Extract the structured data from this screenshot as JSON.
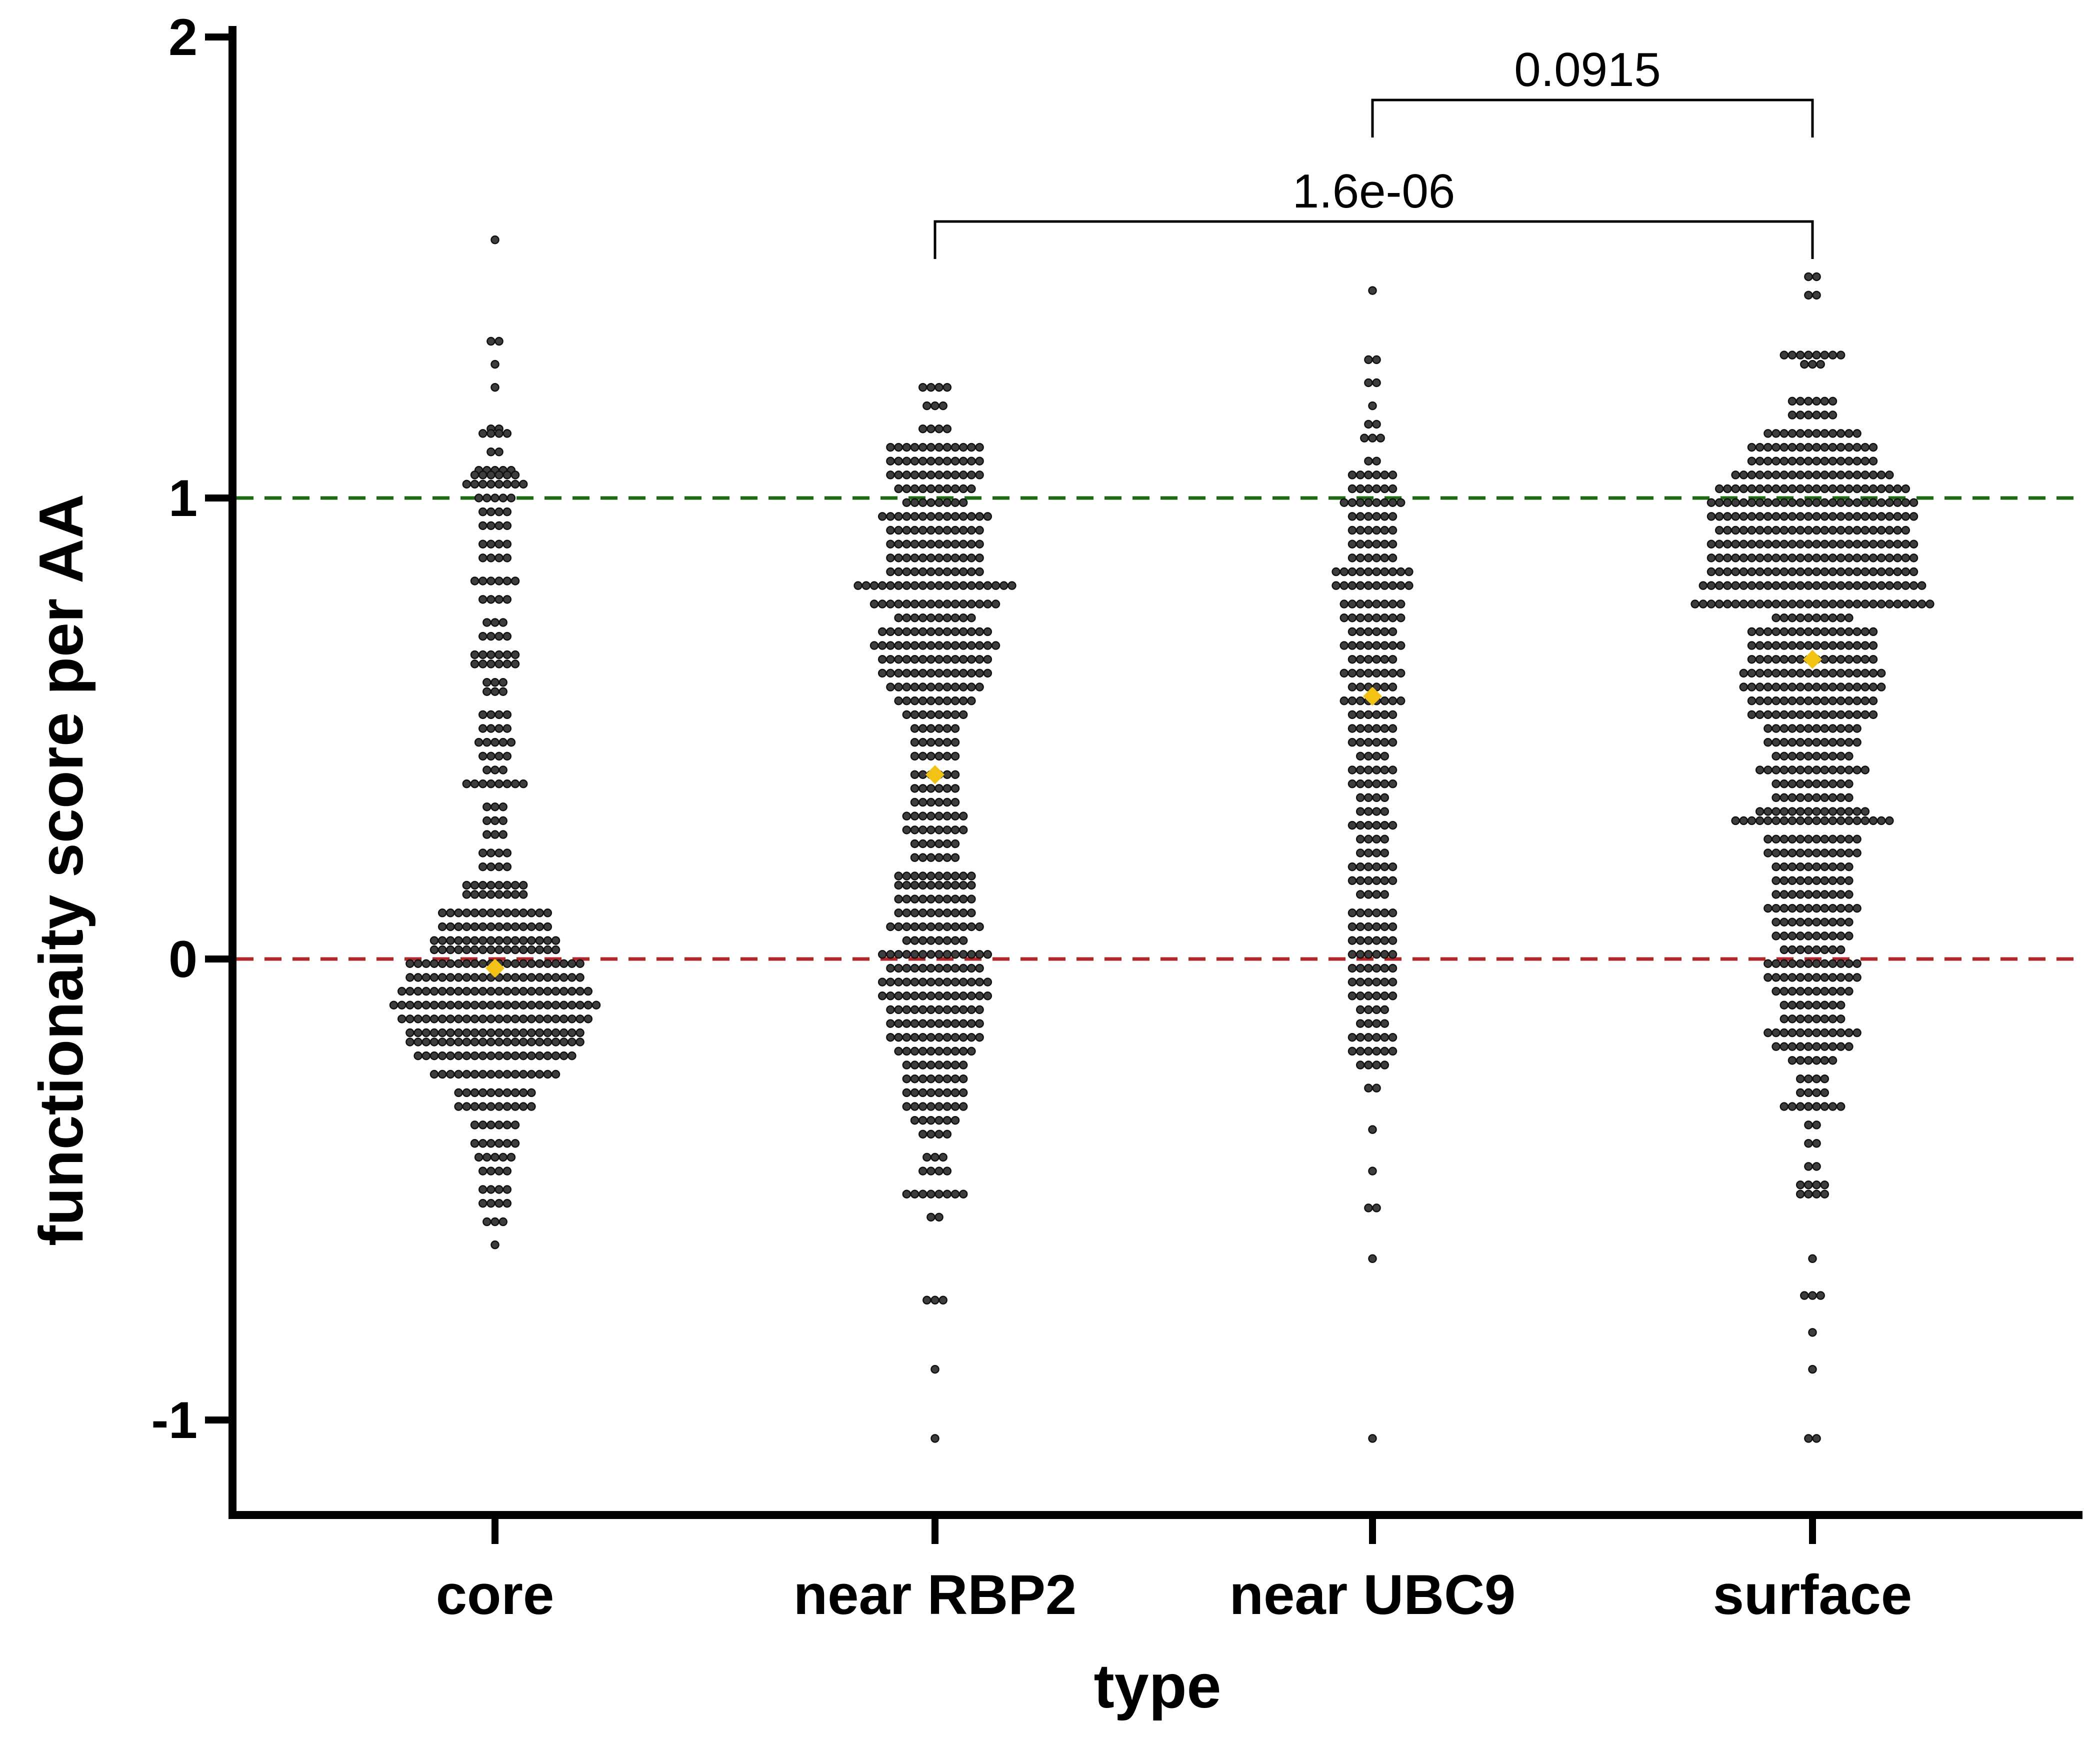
{
  "chart_data": {
    "type": "scatter",
    "subtype": "beeswarm",
    "xlabel": "type",
    "ylabel": "functionaity score per AA",
    "categories": [
      "core",
      "near RBP2",
      "near UBC9",
      "surface"
    ],
    "ylim": [
      -1.2,
      2.0
    ],
    "yticks": [
      2,
      1,
      0,
      -1
    ],
    "ytick_labels": [
      "2",
      "1",
      "0",
      "-1"
    ],
    "reference_lines": [
      {
        "y": 1,
        "color": "#1f6a14",
        "style": "dashed"
      },
      {
        "y": 0,
        "color": "#b3262a",
        "style": "dashed"
      }
    ],
    "point_color": "#3d3d3d",
    "mean_color": "#f2c314",
    "dot_step": 0.0171,
    "group_bins": [
      {
        "name": "core",
        "mean": -0.02,
        "bins": [
          [
            1.56,
            1
          ],
          [
            1.34,
            2
          ],
          [
            1.29,
            1
          ],
          [
            1.24,
            1
          ],
          [
            1.15,
            2
          ],
          [
            1.14,
            4
          ],
          [
            1.1,
            2
          ],
          [
            1.06,
            5
          ],
          [
            1.05,
            6
          ],
          [
            1.03,
            8
          ],
          [
            1.0,
            5
          ],
          [
            0.97,
            4
          ],
          [
            0.94,
            4
          ],
          [
            0.9,
            4
          ],
          [
            0.87,
            4
          ],
          [
            0.82,
            6
          ],
          [
            0.78,
            4
          ],
          [
            0.73,
            3
          ],
          [
            0.7,
            4
          ],
          [
            0.66,
            6
          ],
          [
            0.64,
            6
          ],
          [
            0.6,
            3
          ],
          [
            0.58,
            3
          ],
          [
            0.53,
            4
          ],
          [
            0.5,
            4
          ],
          [
            0.47,
            5
          ],
          [
            0.44,
            4
          ],
          [
            0.41,
            3
          ],
          [
            0.38,
            8
          ],
          [
            0.33,
            3
          ],
          [
            0.3,
            3
          ],
          [
            0.27,
            3
          ],
          [
            0.23,
            4
          ],
          [
            0.2,
            4
          ],
          [
            0.16,
            8
          ],
          [
            0.14,
            8
          ],
          [
            0.1,
            14
          ],
          [
            0.07,
            14
          ],
          [
            0.04,
            16
          ],
          [
            0.02,
            16
          ],
          [
            -0.01,
            22
          ],
          [
            -0.04,
            22
          ],
          [
            -0.07,
            24
          ],
          [
            -0.1,
            26
          ],
          [
            -0.13,
            24
          ],
          [
            -0.16,
            22
          ],
          [
            -0.18,
            22
          ],
          [
            -0.21,
            20
          ],
          [
            -0.25,
            16
          ],
          [
            -0.29,
            10
          ],
          [
            -0.32,
            10
          ],
          [
            -0.36,
            6
          ],
          [
            -0.4,
            6
          ],
          [
            -0.43,
            5
          ],
          [
            -0.46,
            4
          ],
          [
            -0.5,
            4
          ],
          [
            -0.53,
            4
          ],
          [
            -0.57,
            3
          ],
          [
            -0.62,
            1
          ]
        ]
      },
      {
        "name": "near RBP2",
        "mean": 0.4,
        "bins": [
          [
            1.24,
            4
          ],
          [
            1.2,
            3
          ],
          [
            1.15,
            4
          ],
          [
            1.11,
            12
          ],
          [
            1.08,
            12
          ],
          [
            1.05,
            12
          ],
          [
            1.02,
            10
          ],
          [
            0.99,
            8
          ],
          [
            0.96,
            14
          ],
          [
            0.93,
            12
          ],
          [
            0.9,
            12
          ],
          [
            0.87,
            12
          ],
          [
            0.84,
            12
          ],
          [
            0.81,
            20
          ],
          [
            0.77,
            16
          ],
          [
            0.74,
            10
          ],
          [
            0.71,
            14
          ],
          [
            0.68,
            16
          ],
          [
            0.65,
            14
          ],
          [
            0.62,
            14
          ],
          [
            0.59,
            12
          ],
          [
            0.56,
            10
          ],
          [
            0.53,
            8
          ],
          [
            0.5,
            6
          ],
          [
            0.47,
            6
          ],
          [
            0.44,
            6
          ],
          [
            0.4,
            6
          ],
          [
            0.37,
            6
          ],
          [
            0.34,
            6
          ],
          [
            0.31,
            8
          ],
          [
            0.28,
            8
          ],
          [
            0.25,
            6
          ],
          [
            0.22,
            6
          ],
          [
            0.18,
            10
          ],
          [
            0.16,
            10
          ],
          [
            0.13,
            10
          ],
          [
            0.1,
            10
          ],
          [
            0.07,
            12
          ],
          [
            0.04,
            8
          ],
          [
            0.01,
            14
          ],
          [
            -0.02,
            12
          ],
          [
            -0.05,
            14
          ],
          [
            -0.08,
            14
          ],
          [
            -0.11,
            12
          ],
          [
            -0.14,
            12
          ],
          [
            -0.17,
            12
          ],
          [
            -0.2,
            10
          ],
          [
            -0.23,
            8
          ],
          [
            -0.26,
            8
          ],
          [
            -0.29,
            8
          ],
          [
            -0.32,
            8
          ],
          [
            -0.35,
            6
          ],
          [
            -0.38,
            4
          ],
          [
            -0.43,
            3
          ],
          [
            -0.46,
            4
          ],
          [
            -0.51,
            8
          ],
          [
            -0.56,
            2
          ],
          [
            -0.74,
            3
          ],
          [
            -0.89,
            1
          ],
          [
            -1.04,
            1
          ]
        ]
      },
      {
        "name": "near UBC9",
        "mean": 0.57,
        "bins": [
          [
            1.45,
            1
          ],
          [
            1.3,
            2
          ],
          [
            1.25,
            2
          ],
          [
            1.2,
            1
          ],
          [
            1.16,
            2
          ],
          [
            1.13,
            3
          ],
          [
            1.08,
            2
          ],
          [
            1.05,
            6
          ],
          [
            1.02,
            6
          ],
          [
            0.99,
            8
          ],
          [
            0.96,
            6
          ],
          [
            0.93,
            6
          ],
          [
            0.9,
            6
          ],
          [
            0.87,
            6
          ],
          [
            0.84,
            10
          ],
          [
            0.81,
            10
          ],
          [
            0.77,
            8
          ],
          [
            0.74,
            8
          ],
          [
            0.71,
            6
          ],
          [
            0.68,
            8
          ],
          [
            0.65,
            6
          ],
          [
            0.62,
            8
          ],
          [
            0.59,
            6
          ],
          [
            0.56,
            8
          ],
          [
            0.53,
            6
          ],
          [
            0.5,
            6
          ],
          [
            0.47,
            6
          ],
          [
            0.44,
            4
          ],
          [
            0.41,
            6
          ],
          [
            0.38,
            6
          ],
          [
            0.35,
            4
          ],
          [
            0.32,
            4
          ],
          [
            0.29,
            6
          ],
          [
            0.26,
            4
          ],
          [
            0.23,
            4
          ],
          [
            0.2,
            6
          ],
          [
            0.17,
            6
          ],
          [
            0.14,
            4
          ],
          [
            0.1,
            6
          ],
          [
            0.07,
            6
          ],
          [
            0.04,
            6
          ],
          [
            0.01,
            6
          ],
          [
            -0.02,
            6
          ],
          [
            -0.05,
            6
          ],
          [
            -0.08,
            6
          ],
          [
            -0.11,
            4
          ],
          [
            -0.14,
            4
          ],
          [
            -0.17,
            6
          ],
          [
            -0.2,
            6
          ],
          [
            -0.23,
            4
          ],
          [
            -0.28,
            2
          ],
          [
            -0.37,
            1
          ],
          [
            -0.46,
            1
          ],
          [
            -0.54,
            2
          ],
          [
            -0.65,
            1
          ],
          [
            -1.04,
            1
          ]
        ]
      },
      {
        "name": "surface",
        "mean": 0.65,
        "bins": [
          [
            1.48,
            2
          ],
          [
            1.44,
            2
          ],
          [
            1.31,
            8
          ],
          [
            1.29,
            3
          ],
          [
            1.21,
            6
          ],
          [
            1.18,
            6
          ],
          [
            1.14,
            12
          ],
          [
            1.11,
            16
          ],
          [
            1.08,
            16
          ],
          [
            1.05,
            20
          ],
          [
            1.02,
            24
          ],
          [
            0.99,
            26
          ],
          [
            0.96,
            26
          ],
          [
            0.93,
            24
          ],
          [
            0.9,
            26
          ],
          [
            0.87,
            26
          ],
          [
            0.84,
            26
          ],
          [
            0.81,
            28
          ],
          [
            0.77,
            30
          ],
          [
            0.74,
            10
          ],
          [
            0.71,
            16
          ],
          [
            0.68,
            16
          ],
          [
            0.65,
            16
          ],
          [
            0.62,
            18
          ],
          [
            0.59,
            18
          ],
          [
            0.56,
            16
          ],
          [
            0.53,
            16
          ],
          [
            0.5,
            12
          ],
          [
            0.47,
            12
          ],
          [
            0.44,
            10
          ],
          [
            0.41,
            14
          ],
          [
            0.38,
            10
          ],
          [
            0.35,
            10
          ],
          [
            0.32,
            14
          ],
          [
            0.3,
            20
          ],
          [
            0.26,
            12
          ],
          [
            0.23,
            12
          ],
          [
            0.2,
            10
          ],
          [
            0.17,
            10
          ],
          [
            0.14,
            10
          ],
          [
            0.11,
            12
          ],
          [
            0.08,
            10
          ],
          [
            0.05,
            10
          ],
          [
            0.02,
            8
          ],
          [
            -0.01,
            12
          ],
          [
            -0.04,
            12
          ],
          [
            -0.07,
            10
          ],
          [
            -0.1,
            8
          ],
          [
            -0.13,
            8
          ],
          [
            -0.16,
            12
          ],
          [
            -0.19,
            10
          ],
          [
            -0.22,
            6
          ],
          [
            -0.26,
            4
          ],
          [
            -0.29,
            4
          ],
          [
            -0.32,
            8
          ],
          [
            -0.36,
            2
          ],
          [
            -0.4,
            2
          ],
          [
            -0.45,
            2
          ],
          [
            -0.49,
            4
          ],
          [
            -0.51,
            4
          ],
          [
            -0.65,
            1
          ],
          [
            -0.73,
            3
          ],
          [
            -0.81,
            1
          ],
          [
            -0.89,
            1
          ],
          [
            -1.04,
            2
          ]
        ]
      }
    ],
    "comparisons": [
      {
        "from": "near UBC9",
        "to": "surface",
        "label": "0.0915"
      },
      {
        "from": "near RBP2",
        "to": "surface",
        "label": "1.6e-06"
      }
    ]
  }
}
